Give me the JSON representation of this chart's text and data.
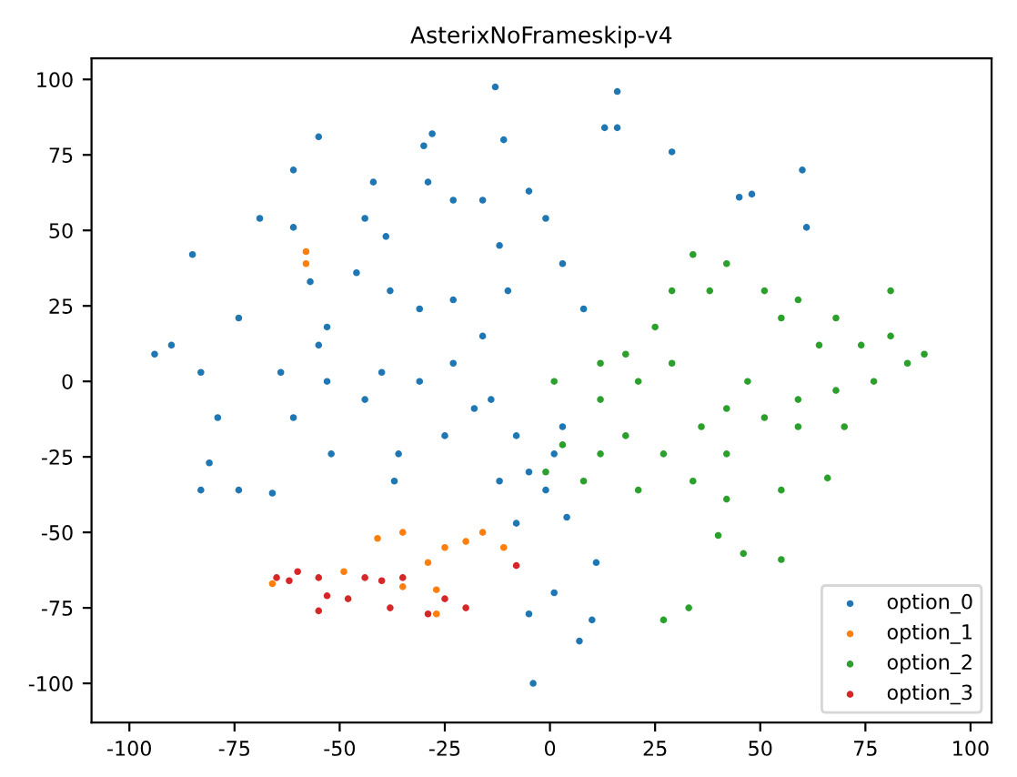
{
  "chart_data": {
    "type": "scatter",
    "title": "AsterixNoFrameskip-v4",
    "xlim": [
      -109,
      105
    ],
    "ylim": [
      -113,
      107
    ],
    "xticks": [
      -100,
      -75,
      -50,
      -25,
      0,
      25,
      50,
      75,
      100
    ],
    "yticks": [
      -100,
      -75,
      -50,
      -25,
      0,
      25,
      50,
      75,
      100
    ],
    "grid": false,
    "legend": "bottom right",
    "marker": "circle",
    "series": [
      {
        "name": "option_0",
        "color": "#1f77b4",
        "x": [
          -13,
          -30,
          -28,
          -11,
          13,
          29,
          16,
          16,
          60,
          45,
          48,
          61,
          -55,
          -61,
          -69,
          -85,
          -74,
          -90,
          -94,
          -83,
          -61,
          -57,
          -53,
          -55,
          -42,
          -39,
          -44,
          -29,
          -23,
          -46,
          -38,
          -31,
          -23,
          -12,
          -16,
          -5,
          -1,
          3,
          8,
          -10,
          -16,
          -40,
          -31,
          -23,
          -44,
          -53,
          -64,
          -79,
          -81,
          -74,
          -66,
          -83,
          -61,
          -52,
          -36,
          -37,
          -25,
          -18,
          -8,
          -5,
          -1,
          -12,
          1,
          3,
          4,
          1,
          -5,
          10,
          7,
          -4,
          -8,
          11,
          -14
        ],
        "values": [
          97.5,
          78,
          82,
          80,
          84,
          76,
          96,
          84,
          70,
          61,
          62,
          51,
          81,
          70,
          54,
          42,
          21,
          12,
          9,
          3,
          51,
          33,
          18,
          12,
          66,
          48,
          54,
          66,
          60,
          36,
          30,
          24,
          27,
          45,
          60,
          63,
          54,
          39,
          24,
          30,
          15,
          3,
          0,
          6,
          -6,
          0,
          3,
          -12,
          -27,
          -36,
          -37,
          -36,
          -12,
          -24,
          -24,
          -33,
          -18,
          -9,
          -18,
          -30,
          -36,
          -33,
          -24,
          -15,
          -45,
          -70,
          -77,
          -79,
          -86,
          -100,
          -47,
          -60,
          -6
        ]
      },
      {
        "name": "option_1",
        "color": "#ff7f0e",
        "x": [
          -41,
          -35,
          -25,
          -20,
          -16,
          -29,
          -27,
          -27,
          -49,
          -66,
          -35,
          -11,
          -58,
          -58
        ],
        "values": [
          -52,
          -50,
          -55,
          -53,
          -50,
          -60,
          -69,
          -77,
          -63,
          -67,
          -68,
          -55,
          43,
          39
        ]
      },
      {
        "name": "option_2",
        "color": "#2ca02c",
        "x": [
          1,
          12,
          21,
          29,
          18,
          27,
          36,
          42,
          47,
          12,
          8,
          21,
          34,
          42,
          51,
          59,
          68,
          77,
          85,
          89,
          81,
          34,
          42,
          29,
          38,
          51,
          55,
          59,
          68,
          64,
          81,
          74,
          25,
          18,
          12,
          70,
          59,
          66,
          55,
          42,
          40,
          46,
          55,
          27,
          33,
          -1,
          3
        ],
        "values": [
          0,
          -6,
          0,
          6,
          -18,
          -24,
          -15,
          -9,
          0,
          -24,
          -33,
          -36,
          -33,
          -24,
          -12,
          -6,
          -3,
          0,
          6,
          9,
          15,
          42,
          39,
          30,
          30,
          30,
          21,
          27,
          21,
          12,
          30,
          12,
          18,
          9,
          6,
          -15,
          -15,
          -32,
          -36,
          -39,
          -51,
          -57,
          -59,
          -79,
          -75,
          -30,
          -21
        ]
      },
      {
        "name": "option_3",
        "color": "#d62728",
        "x": [
          -65,
          -60,
          -55,
          -53,
          -44,
          -40,
          -35,
          -48,
          -55,
          -38,
          -25,
          -20,
          -29,
          -8,
          -62
        ],
        "values": [
          -65,
          -63,
          -65,
          -71,
          -65,
          -66,
          -65,
          -72,
          -76,
          -75,
          -72,
          -75,
          -77,
          -61,
          -66
        ]
      }
    ]
  }
}
